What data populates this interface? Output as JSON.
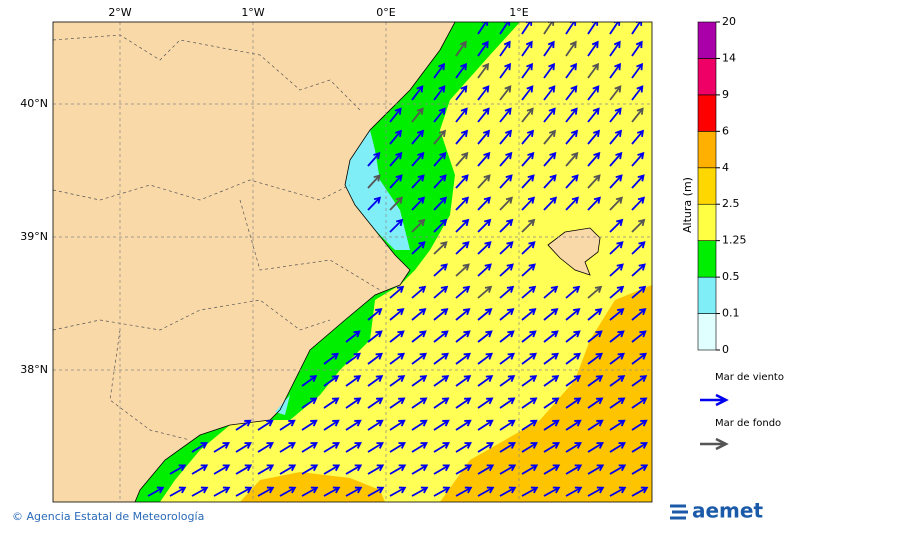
{
  "map": {
    "lon_ticks": [
      {
        "value": -2,
        "label": "2°W"
      },
      {
        "value": -1,
        "label": "1°W"
      },
      {
        "value": 0,
        "label": "0°E"
      },
      {
        "value": 1,
        "label": "1°E"
      }
    ],
    "lat_ticks": [
      {
        "value": 40,
        "label": "40°N"
      },
      {
        "value": 39,
        "label": "39°N"
      },
      {
        "value": 38,
        "label": "38°N"
      }
    ]
  },
  "colorbar": {
    "label": "Altura (m)",
    "ticks": [
      0,
      0.1,
      0.5,
      1.25,
      2.5,
      4,
      6,
      9,
      14,
      20
    ],
    "colors": [
      "#e0ffff",
      "#80eef6",
      "#00ee00",
      "#ffff44",
      "#ffd700",
      "#ffb000",
      "#ff0000",
      "#ee0066",
      "#aa00aa"
    ]
  },
  "legend": {
    "items": [
      {
        "label": "Mar de viento",
        "color": "#0000ee"
      },
      {
        "label": "Mar de fondo",
        "color": "#555555"
      }
    ]
  },
  "footer": {
    "credit": "© Agencia Estatal de Meteorología",
    "logo": "aemet"
  }
}
